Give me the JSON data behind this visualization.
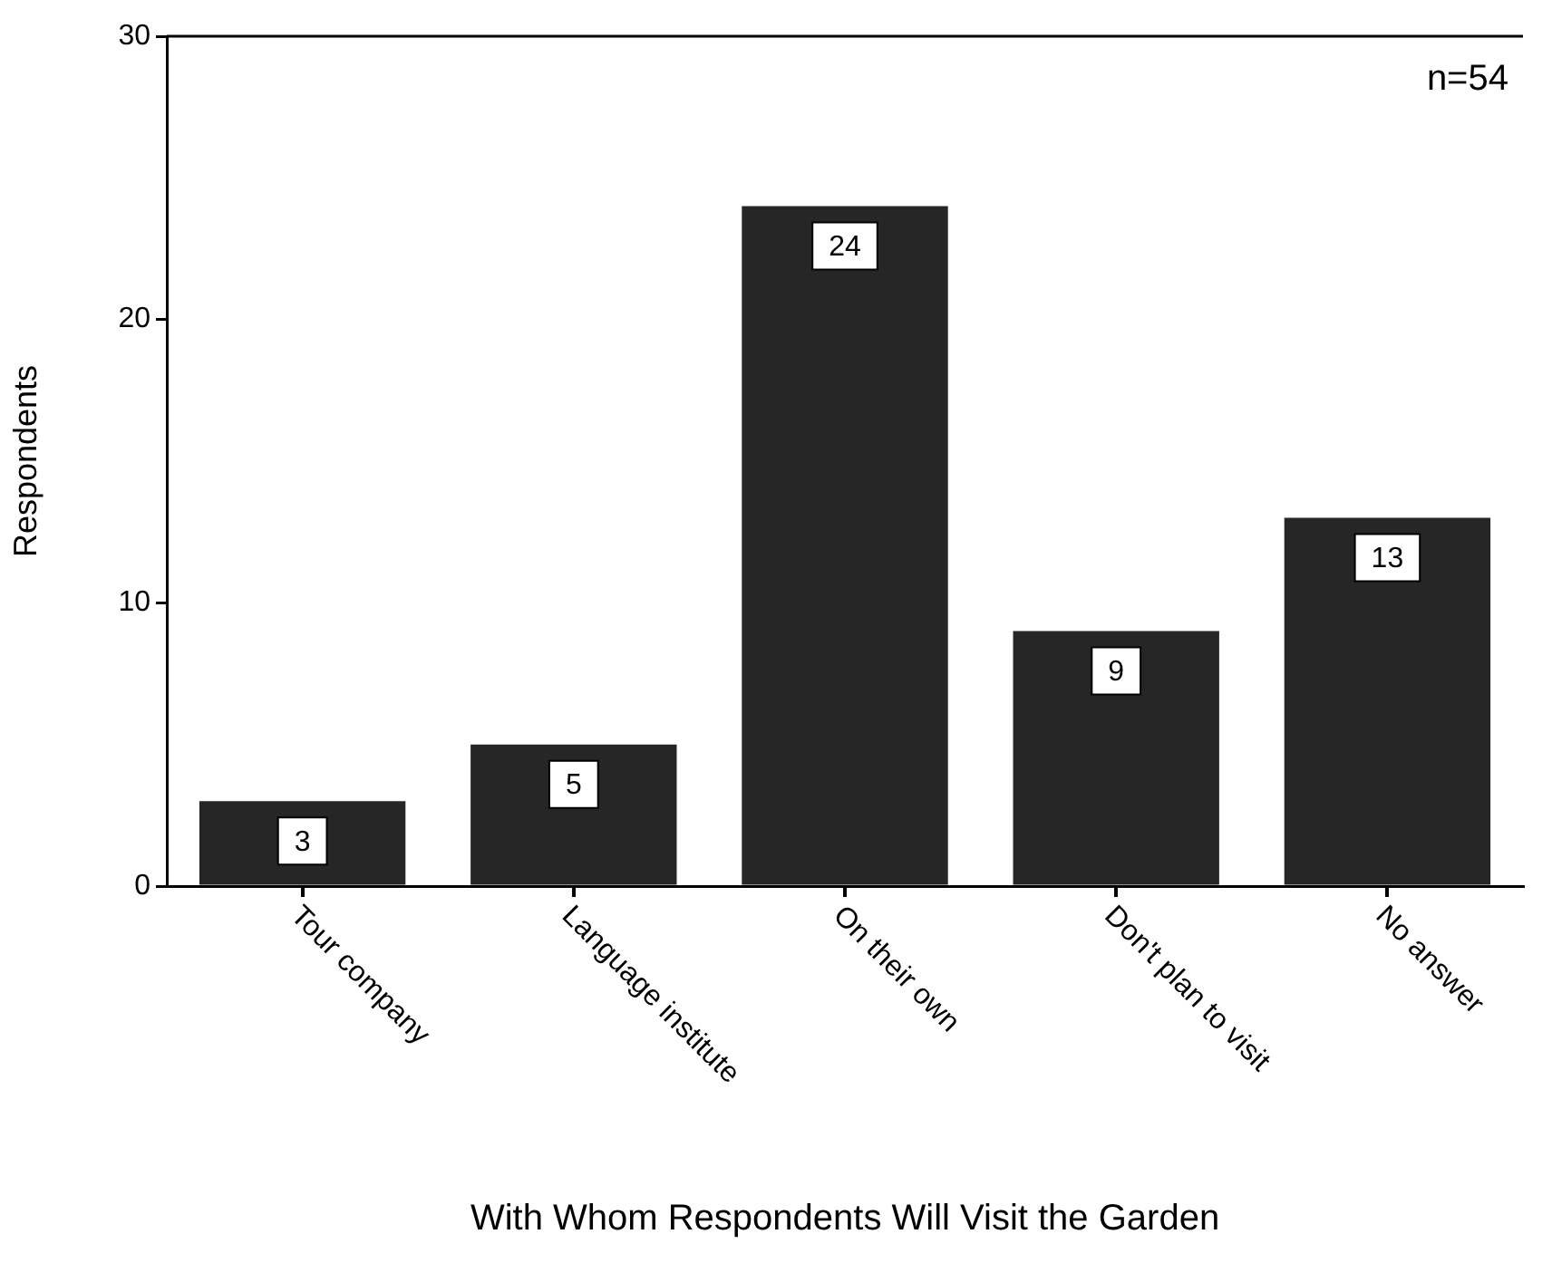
{
  "chart_data": {
    "type": "bar",
    "xlabel": "With Whom Respondents Will Visit the Garden",
    "ylabel": "Respondents",
    "categories": [
      "Tour company",
      "Language institute",
      "On their own",
      "Don't plan to visit",
      "No answer"
    ],
    "values": [
      3,
      5,
      24,
      9,
      13
    ],
    "color": "#262626",
    "ylim": [
      0,
      30
    ],
    "yticks": [
      0,
      10,
      20,
      30
    ],
    "grid": false,
    "legend": false,
    "data_labels": true,
    "annotations": [
      "n=54"
    ]
  }
}
